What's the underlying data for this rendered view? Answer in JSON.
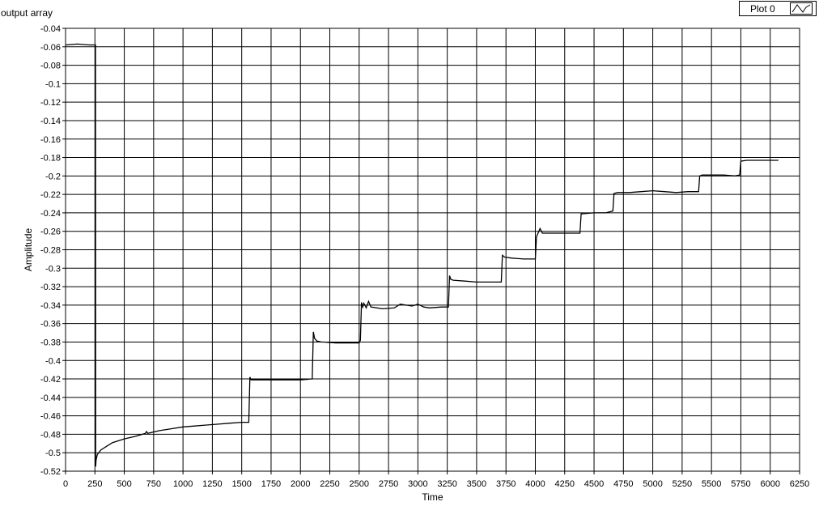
{
  "graph": {
    "label": "output array",
    "legend": {
      "plot_name": "Plot 0"
    }
  },
  "chart_data": {
    "type": "line",
    "title": "",
    "xlabel": "Time",
    "ylabel": "Amplitude",
    "xlim": [
      0,
      6250
    ],
    "ylim": [
      -0.52,
      -0.04
    ],
    "grid": true,
    "legend_position": "top-right",
    "x_ticks": [
      0,
      250,
      500,
      750,
      1000,
      1250,
      1500,
      1750,
      2000,
      2250,
      2500,
      2750,
      3000,
      3250,
      3500,
      3750,
      4000,
      4250,
      4500,
      4750,
      5000,
      5250,
      5500,
      5750,
      6000,
      6250
    ],
    "y_ticks": [
      -0.04,
      -0.06,
      -0.08,
      -0.1,
      -0.12,
      -0.14,
      -0.16,
      -0.18,
      -0.2,
      -0.22,
      -0.24,
      -0.26,
      -0.28,
      -0.3,
      -0.32,
      -0.34,
      -0.36,
      -0.38,
      -0.4,
      -0.42,
      -0.44,
      -0.46,
      -0.48,
      -0.5,
      -0.52
    ],
    "series": [
      {
        "name": "Plot 0",
        "color": "#000000",
        "x": [
          0,
          100,
          200,
          255,
          256,
          260,
          270,
          300,
          350,
          400,
          500,
          600,
          680,
          690,
          700,
          800,
          900,
          1000,
          1100,
          1200,
          1300,
          1400,
          1500,
          1560,
          1570,
          1580,
          1650,
          1800,
          1900,
          2000,
          2100,
          2110,
          2120,
          2140,
          2180,
          2200,
          2300,
          2400,
          2500,
          2510,
          2520,
          2530,
          2540,
          2560,
          2580,
          2600,
          2700,
          2800,
          2850,
          2900,
          2950,
          3000,
          3050,
          3100,
          3200,
          3260,
          3270,
          3280,
          3300,
          3400,
          3500,
          3600,
          3710,
          3720,
          3740,
          3800,
          3900,
          4000,
          4010,
          4040,
          4060,
          4080,
          4200,
          4300,
          4380,
          4390,
          4400,
          4500,
          4600,
          4660,
          4670,
          4700,
          4800,
          4900,
          5000,
          5100,
          5200,
          5300,
          5390,
          5400,
          5420,
          5500,
          5600,
          5700,
          5740,
          5750,
          5800,
          5900,
          6000,
          6070
        ],
        "y": [
          -0.058,
          -0.057,
          -0.058,
          -0.058,
          -0.515,
          -0.508,
          -0.502,
          -0.497,
          -0.493,
          -0.489,
          -0.485,
          -0.482,
          -0.479,
          -0.477,
          -0.479,
          -0.476,
          -0.474,
          -0.472,
          -0.471,
          -0.47,
          -0.469,
          -0.468,
          -0.467,
          -0.467,
          -0.418,
          -0.421,
          -0.421,
          -0.421,
          -0.421,
          -0.421,
          -0.42,
          -0.369,
          -0.376,
          -0.379,
          -0.38,
          -0.38,
          -0.381,
          -0.381,
          -0.381,
          -0.378,
          -0.337,
          -0.342,
          -0.338,
          -0.343,
          -0.336,
          -0.342,
          -0.344,
          -0.343,
          -0.339,
          -0.34,
          -0.341,
          -0.339,
          -0.342,
          -0.343,
          -0.342,
          -0.342,
          -0.308,
          -0.312,
          -0.313,
          -0.314,
          -0.315,
          -0.315,
          -0.315,
          -0.286,
          -0.288,
          -0.289,
          -0.29,
          -0.29,
          -0.266,
          -0.257,
          -0.262,
          -0.262,
          -0.262,
          -0.262,
          -0.262,
          -0.241,
          -0.241,
          -0.24,
          -0.24,
          -0.238,
          -0.219,
          -0.218,
          -0.218,
          -0.217,
          -0.216,
          -0.217,
          -0.218,
          -0.217,
          -0.217,
          -0.2,
          -0.199,
          -0.199,
          -0.199,
          -0.2,
          -0.199,
          -0.184,
          -0.183,
          -0.183,
          -0.183,
          -0.183
        ]
      }
    ]
  }
}
